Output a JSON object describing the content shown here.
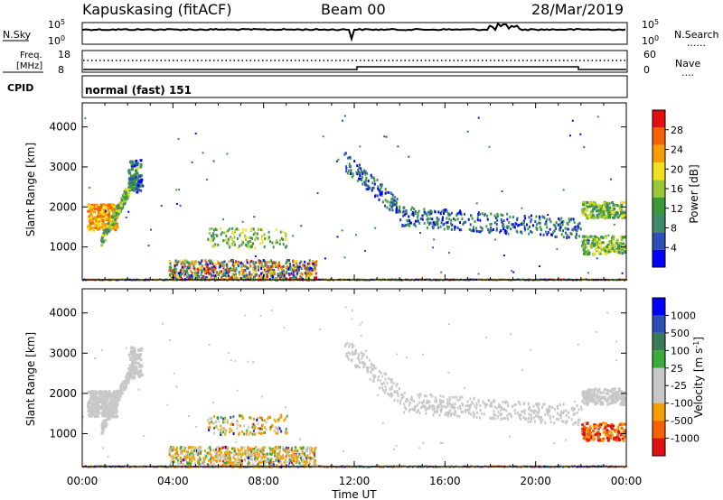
{
  "header": {
    "station": "Kapuskasing (fitACF)",
    "beam": "Beam 00",
    "date": "28/Mar/2019"
  },
  "strip_labels": {
    "nsky": "N.Sky",
    "nsearch": "N.Search",
    "freq": "Freq.",
    "mhz": "[MHz]",
    "nave": "Nave",
    "cpid": "CPID",
    "mode": "normal (fast) 151"
  },
  "strip_ticks": {
    "nsky_left": [
      "10^5",
      "10^0"
    ],
    "nsky_right": [
      "10^5",
      "10^0"
    ],
    "freq_left": [
      "18",
      "8"
    ],
    "nave_right": [
      "60",
      "0"
    ]
  },
  "legend_markers": {
    "nsearch": "......",
    "nave": "...."
  },
  "colors": {
    "power": [
      "#0000ff",
      "#2b4fb3",
      "#3f8a6a",
      "#3a9a3a",
      "#98c83a",
      "#f0e020",
      "#f5a000",
      "#f56000",
      "#e01010"
    ],
    "velocity": [
      "#e01010",
      "#f56000",
      "#f5a000",
      "#c8c8c8",
      "#c8c8c8",
      "#3aaa3a",
      "#3a7a5a",
      "#2b4fb3",
      "#0000ff"
    ],
    "ground_scatter": "#c8c8c8"
  },
  "chart_data": [
    {
      "type": "heatmap",
      "title": "Power",
      "xlabel": "Time UT",
      "ylabel": "Slant Range [km]",
      "xlim": [
        0,
        24
      ],
      "ylim": [
        180,
        4600
      ],
      "x_ticks": [
        "00:00",
        "04:00",
        "08:00",
        "12:00",
        "16:00",
        "20:00",
        "00:00"
      ],
      "y_ticks": [
        1000,
        2000,
        3000,
        4000
      ],
      "colorbar": {
        "label": "Power [dB]",
        "range": [
          0,
          32
        ],
        "ticks": [
          4,
          8,
          12,
          16,
          20,
          24,
          28
        ]
      },
      "features": [
        {
          "t0": 0.2,
          "t1": 1.5,
          "r0": 1450,
          "r1": 2100,
          "level": "high"
        },
        {
          "t0": 0.8,
          "t1": 2.6,
          "r0": 900,
          "r1": 3200,
          "level": "mid"
        },
        {
          "t0": 4.0,
          "t1": 10.0,
          "r0": 180,
          "r1": 1500,
          "level": "mixed"
        },
        {
          "t0": 11.5,
          "t1": 18.0,
          "r0": 1400,
          "r1": 3200,
          "level": "low"
        },
        {
          "t0": 15.0,
          "t1": 22.0,
          "r0": 180,
          "r1": 2100,
          "level": "low"
        },
        {
          "t0": 22.0,
          "t1": 24.0,
          "r0": 800,
          "r1": 2100,
          "level": "mid"
        }
      ]
    },
    {
      "type": "heatmap",
      "title": "Velocity",
      "xlabel": "Time UT",
      "ylabel": "Slant Range [km]",
      "xlim": [
        0,
        24
      ],
      "ylim": [
        180,
        4600
      ],
      "x_ticks": [
        "00:00",
        "04:00",
        "08:00",
        "12:00",
        "16:00",
        "20:00",
        "00:00"
      ],
      "y_ticks": [
        1000,
        2000,
        3000,
        4000
      ],
      "colorbar": {
        "label": "Velocity [m s^-1]",
        "ticks": [
          1000,
          500,
          100,
          25,
          -25,
          -100,
          -500,
          -1000
        ]
      },
      "features": [
        {
          "t0": 0.2,
          "t1": 2.6,
          "r0": 900,
          "r1": 3200,
          "class": "ground scatter"
        },
        {
          "t0": 4.0,
          "t1": 10.0,
          "r0": 180,
          "r1": 1500,
          "class": "mixed"
        },
        {
          "t0": 11.5,
          "t1": 22.0,
          "r0": 1400,
          "r1": 3200,
          "class": "ground scatter"
        },
        {
          "t0": 22.0,
          "t1": 24.0,
          "r0": 800,
          "r1": 1400,
          "class": "negative velocity"
        }
      ]
    }
  ]
}
